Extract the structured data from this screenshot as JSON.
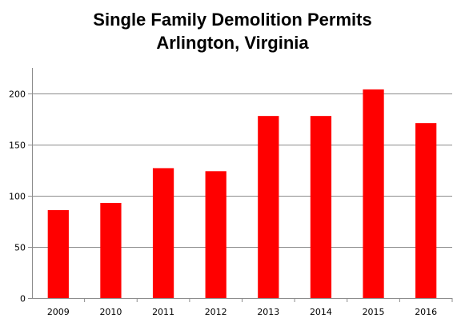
{
  "chart_data": {
    "type": "bar",
    "title": "Single Family Demolition Permits",
    "subtitle": "Arlington, Virginia",
    "categories": [
      "2009",
      "2010",
      "2011",
      "2012",
      "2013",
      "2014",
      "2015",
      "2016"
    ],
    "values": [
      86,
      93,
      127,
      124,
      178,
      178,
      204,
      171
    ],
    "ylim": [
      0,
      225
    ],
    "yticks": [
      "0",
      "50",
      "100",
      "150",
      "200"
    ],
    "grid": true,
    "bar_color": "#ff0000",
    "legend": "none"
  }
}
